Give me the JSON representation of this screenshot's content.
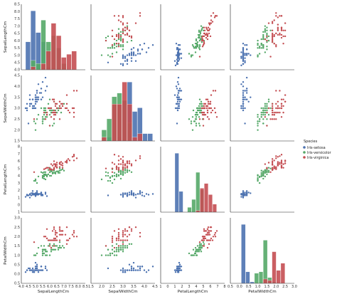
{
  "chart_data": {
    "type": "scatter",
    "title": "",
    "kind": "pairplot",
    "variables": [
      "SepalLengthCm",
      "SepalWidthCm",
      "PetalLengthCm",
      "PetalWidthCm"
    ],
    "axis_labels": [
      "SepalLengthCm",
      "SepalWidthCm",
      "PetalLengthCm",
      "PetalWidthCm"
    ],
    "ranges": [
      [
        4.0,
        8.5
      ],
      [
        1.5,
        4.5
      ],
      [
        -1,
        8
      ],
      [
        -0.5,
        3.0
      ]
    ],
    "ticks": [
      [
        "4.0",
        "4.5",
        "5.0",
        "5.5",
        "6.0",
        "6.5",
        "7.0",
        "7.5",
        "8.0",
        "8.5"
      ],
      [
        "1.5",
        "2.0",
        "2.5",
        "3.0",
        "3.5",
        "4.0",
        "4.5"
      ],
      [
        "1",
        "0",
        "1",
        "2",
        "3",
        "4",
        "5",
        "6",
        "7",
        "8"
      ],
      [
        "0.5",
        "0.0",
        "0.5",
        "1.0",
        "1.5",
        "2.0",
        "2.5",
        "3.0"
      ]
    ],
    "tick_values": [
      [
        4.0,
        4.5,
        5.0,
        5.5,
        6.0,
        6.5,
        7.0,
        7.5,
        8.0,
        8.5
      ],
      [
        1.5,
        2.0,
        2.5,
        3.0,
        3.5,
        4.0,
        4.5
      ],
      [
        -1,
        0,
        1,
        2,
        3,
        4,
        5,
        6,
        7,
        8
      ],
      [
        -0.5,
        0.0,
        0.5,
        1.0,
        1.5,
        2.0,
        2.5,
        3.0
      ]
    ],
    "legend": {
      "title": "Species",
      "placement": "right",
      "entries": [
        "Iris-setosa",
        "Iris-versicolor",
        "Iris-virginica"
      ]
    },
    "colors": [
      "#4c72b0",
      "#55a868",
      "#c44e52"
    ],
    "series": [
      {
        "name": "Iris-setosa",
        "points": [
          [
            5.1,
            3.5,
            1.4,
            0.2
          ],
          [
            4.9,
            3.0,
            1.4,
            0.2
          ],
          [
            4.7,
            3.2,
            1.3,
            0.2
          ],
          [
            4.6,
            3.1,
            1.5,
            0.2
          ],
          [
            5.0,
            3.6,
            1.4,
            0.2
          ],
          [
            5.4,
            3.9,
            1.7,
            0.4
          ],
          [
            4.6,
            3.4,
            1.4,
            0.3
          ],
          [
            5.0,
            3.4,
            1.5,
            0.2
          ],
          [
            4.4,
            2.9,
            1.4,
            0.2
          ],
          [
            4.9,
            3.1,
            1.5,
            0.1
          ],
          [
            5.4,
            3.7,
            1.5,
            0.2
          ],
          [
            4.8,
            3.4,
            1.6,
            0.2
          ],
          [
            4.8,
            3.0,
            1.4,
            0.1
          ],
          [
            4.3,
            3.0,
            1.1,
            0.1
          ],
          [
            5.8,
            4.0,
            1.2,
            0.2
          ],
          [
            5.7,
            4.4,
            1.5,
            0.4
          ],
          [
            5.4,
            3.9,
            1.3,
            0.4
          ],
          [
            5.1,
            3.5,
            1.4,
            0.3
          ],
          [
            5.7,
            3.8,
            1.7,
            0.3
          ],
          [
            5.1,
            3.8,
            1.5,
            0.3
          ],
          [
            5.4,
            3.4,
            1.7,
            0.2
          ],
          [
            5.1,
            3.7,
            1.5,
            0.4
          ],
          [
            4.6,
            3.6,
            1.0,
            0.2
          ],
          [
            5.1,
            3.3,
            1.7,
            0.5
          ],
          [
            4.8,
            3.4,
            1.9,
            0.2
          ],
          [
            5.0,
            3.0,
            1.6,
            0.2
          ],
          [
            5.0,
            3.4,
            1.6,
            0.4
          ],
          [
            5.2,
            3.5,
            1.5,
            0.2
          ],
          [
            5.2,
            3.4,
            1.4,
            0.2
          ],
          [
            4.7,
            3.2,
            1.6,
            0.2
          ],
          [
            4.8,
            3.1,
            1.6,
            0.2
          ],
          [
            5.4,
            3.4,
            1.5,
            0.4
          ],
          [
            5.2,
            4.1,
            1.5,
            0.1
          ],
          [
            5.5,
            4.2,
            1.4,
            0.2
          ],
          [
            4.9,
            3.1,
            1.5,
            0.1
          ],
          [
            5.0,
            3.2,
            1.2,
            0.2
          ],
          [
            5.5,
            3.5,
            1.3,
            0.2
          ],
          [
            4.9,
            3.1,
            1.5,
            0.1
          ],
          [
            4.4,
            3.0,
            1.3,
            0.2
          ],
          [
            5.1,
            3.4,
            1.5,
            0.2
          ],
          [
            5.0,
            3.5,
            1.3,
            0.3
          ],
          [
            4.5,
            2.3,
            1.3,
            0.3
          ],
          [
            4.4,
            3.2,
            1.3,
            0.2
          ],
          [
            5.0,
            3.5,
            1.6,
            0.6
          ],
          [
            5.1,
            3.8,
            1.9,
            0.4
          ],
          [
            4.8,
            3.0,
            1.4,
            0.3
          ],
          [
            5.1,
            3.8,
            1.6,
            0.2
          ],
          [
            4.6,
            3.2,
            1.4,
            0.2
          ],
          [
            5.3,
            3.7,
            1.5,
            0.2
          ],
          [
            5.0,
            3.3,
            1.4,
            0.2
          ]
        ]
      },
      {
        "name": "Iris-versicolor",
        "points": [
          [
            7.0,
            3.2,
            4.7,
            1.4
          ],
          [
            6.4,
            3.2,
            4.5,
            1.5
          ],
          [
            6.9,
            3.1,
            4.9,
            1.5
          ],
          [
            5.5,
            2.3,
            4.0,
            1.3
          ],
          [
            6.5,
            2.8,
            4.6,
            1.5
          ],
          [
            5.7,
            2.8,
            4.5,
            1.3
          ],
          [
            6.3,
            3.3,
            4.7,
            1.6
          ],
          [
            4.9,
            2.4,
            3.3,
            1.0
          ],
          [
            6.6,
            2.9,
            4.6,
            1.3
          ],
          [
            5.2,
            2.7,
            3.9,
            1.4
          ],
          [
            5.0,
            2.0,
            3.5,
            1.0
          ],
          [
            5.9,
            3.0,
            4.2,
            1.5
          ],
          [
            6.0,
            2.2,
            4.0,
            1.0
          ],
          [
            6.1,
            2.9,
            4.7,
            1.4
          ],
          [
            5.6,
            2.9,
            3.6,
            1.3
          ],
          [
            6.7,
            3.1,
            4.4,
            1.4
          ],
          [
            5.6,
            3.0,
            4.5,
            1.5
          ],
          [
            5.8,
            2.7,
            4.1,
            1.0
          ],
          [
            6.2,
            2.2,
            4.5,
            1.5
          ],
          [
            5.6,
            2.5,
            3.9,
            1.1
          ],
          [
            5.9,
            3.2,
            4.8,
            1.8
          ],
          [
            6.1,
            2.8,
            4.0,
            1.3
          ],
          [
            6.3,
            2.5,
            4.9,
            1.5
          ],
          [
            6.1,
            2.8,
            4.7,
            1.2
          ],
          [
            6.4,
            2.9,
            4.3,
            1.3
          ],
          [
            6.6,
            3.0,
            4.4,
            1.4
          ],
          [
            6.8,
            2.8,
            4.8,
            1.4
          ],
          [
            6.7,
            3.0,
            5.0,
            1.7
          ],
          [
            6.0,
            2.9,
            4.5,
            1.5
          ],
          [
            5.7,
            2.6,
            3.5,
            1.0
          ],
          [
            5.5,
            2.4,
            3.8,
            1.1
          ],
          [
            5.5,
            2.4,
            3.7,
            1.0
          ],
          [
            5.8,
            2.7,
            3.9,
            1.2
          ],
          [
            6.0,
            2.7,
            5.1,
            1.6
          ],
          [
            5.4,
            3.0,
            4.5,
            1.5
          ],
          [
            6.0,
            3.4,
            4.5,
            1.6
          ],
          [
            6.7,
            3.1,
            4.7,
            1.5
          ],
          [
            6.3,
            2.3,
            4.4,
            1.3
          ],
          [
            5.6,
            3.0,
            4.1,
            1.3
          ],
          [
            5.5,
            2.5,
            4.0,
            1.3
          ],
          [
            5.5,
            2.6,
            4.4,
            1.2
          ],
          [
            6.1,
            3.0,
            4.6,
            1.4
          ],
          [
            5.8,
            2.6,
            4.0,
            1.2
          ],
          [
            5.0,
            2.3,
            3.3,
            1.0
          ],
          [
            5.6,
            2.7,
            4.2,
            1.3
          ],
          [
            5.7,
            3.0,
            4.2,
            1.2
          ],
          [
            5.7,
            2.9,
            4.2,
            1.3
          ],
          [
            6.2,
            2.9,
            4.3,
            1.3
          ],
          [
            5.1,
            2.5,
            3.0,
            1.1
          ],
          [
            5.7,
            2.8,
            4.1,
            1.3
          ]
        ]
      },
      {
        "name": "Iris-virginica",
        "points": [
          [
            6.3,
            3.3,
            6.0,
            2.5
          ],
          [
            5.8,
            2.7,
            5.1,
            1.9
          ],
          [
            7.1,
            3.0,
            5.9,
            2.1
          ],
          [
            6.3,
            2.9,
            5.6,
            1.8
          ],
          [
            6.5,
            3.0,
            5.8,
            2.2
          ],
          [
            7.6,
            3.0,
            6.6,
            2.1
          ],
          [
            4.9,
            2.5,
            4.5,
            1.7
          ],
          [
            7.3,
            2.9,
            6.3,
            1.8
          ],
          [
            6.7,
            2.5,
            5.8,
            1.8
          ],
          [
            7.2,
            3.6,
            6.1,
            2.5
          ],
          [
            6.5,
            3.2,
            5.1,
            2.0
          ],
          [
            6.4,
            2.7,
            5.3,
            1.9
          ],
          [
            6.8,
            3.0,
            5.5,
            2.1
          ],
          [
            5.7,
            2.5,
            5.0,
            2.0
          ],
          [
            5.8,
            2.8,
            5.1,
            2.4
          ],
          [
            6.4,
            3.2,
            5.3,
            2.3
          ],
          [
            6.5,
            3.0,
            5.5,
            1.8
          ],
          [
            7.7,
            3.8,
            6.7,
            2.2
          ],
          [
            7.7,
            2.6,
            6.9,
            2.3
          ],
          [
            6.0,
            2.2,
            5.0,
            1.5
          ],
          [
            6.9,
            3.2,
            5.7,
            2.3
          ],
          [
            5.6,
            2.8,
            4.9,
            2.0
          ],
          [
            7.7,
            2.8,
            6.7,
            2.0
          ],
          [
            6.3,
            2.7,
            4.9,
            1.8
          ],
          [
            6.7,
            3.3,
            5.7,
            2.1
          ],
          [
            7.2,
            3.2,
            6.0,
            1.8
          ],
          [
            6.2,
            2.8,
            4.8,
            1.8
          ],
          [
            6.1,
            3.0,
            4.9,
            1.8
          ],
          [
            6.4,
            2.8,
            5.6,
            2.1
          ],
          [
            7.2,
            3.0,
            5.8,
            1.6
          ],
          [
            7.4,
            2.8,
            6.1,
            1.9
          ],
          [
            7.9,
            3.8,
            6.4,
            2.0
          ],
          [
            6.4,
            2.8,
            5.6,
            2.2
          ],
          [
            6.3,
            2.8,
            5.1,
            1.5
          ],
          [
            6.1,
            2.6,
            5.6,
            1.4
          ],
          [
            7.7,
            3.0,
            6.1,
            2.3
          ],
          [
            6.3,
            3.4,
            5.6,
            2.4
          ],
          [
            6.4,
            3.1,
            5.5,
            1.8
          ],
          [
            6.0,
            3.0,
            4.8,
            1.8
          ],
          [
            6.9,
            3.1,
            5.4,
            2.1
          ],
          [
            6.7,
            3.1,
            5.6,
            2.4
          ],
          [
            6.9,
            3.1,
            5.1,
            2.3
          ],
          [
            5.8,
            2.7,
            5.1,
            1.9
          ],
          [
            6.8,
            3.2,
            5.9,
            2.3
          ],
          [
            6.7,
            3.3,
            5.7,
            2.5
          ],
          [
            6.7,
            3.0,
            5.2,
            2.3
          ],
          [
            6.3,
            2.5,
            5.0,
            1.9
          ],
          [
            6.5,
            3.0,
            5.2,
            2.0
          ],
          [
            6.2,
            3.4,
            5.4,
            2.3
          ],
          [
            5.9,
            3.0,
            5.1,
            1.8
          ]
        ]
      }
    ],
    "histogram_bins": [
      {
        "start": 4.3,
        "width": 0.36
      },
      {
        "start": 2.0,
        "width": 0.24
      },
      {
        "start": 1.0,
        "width": 0.59
      },
      {
        "start": 0.1,
        "width": 0.24
      }
    ]
  }
}
